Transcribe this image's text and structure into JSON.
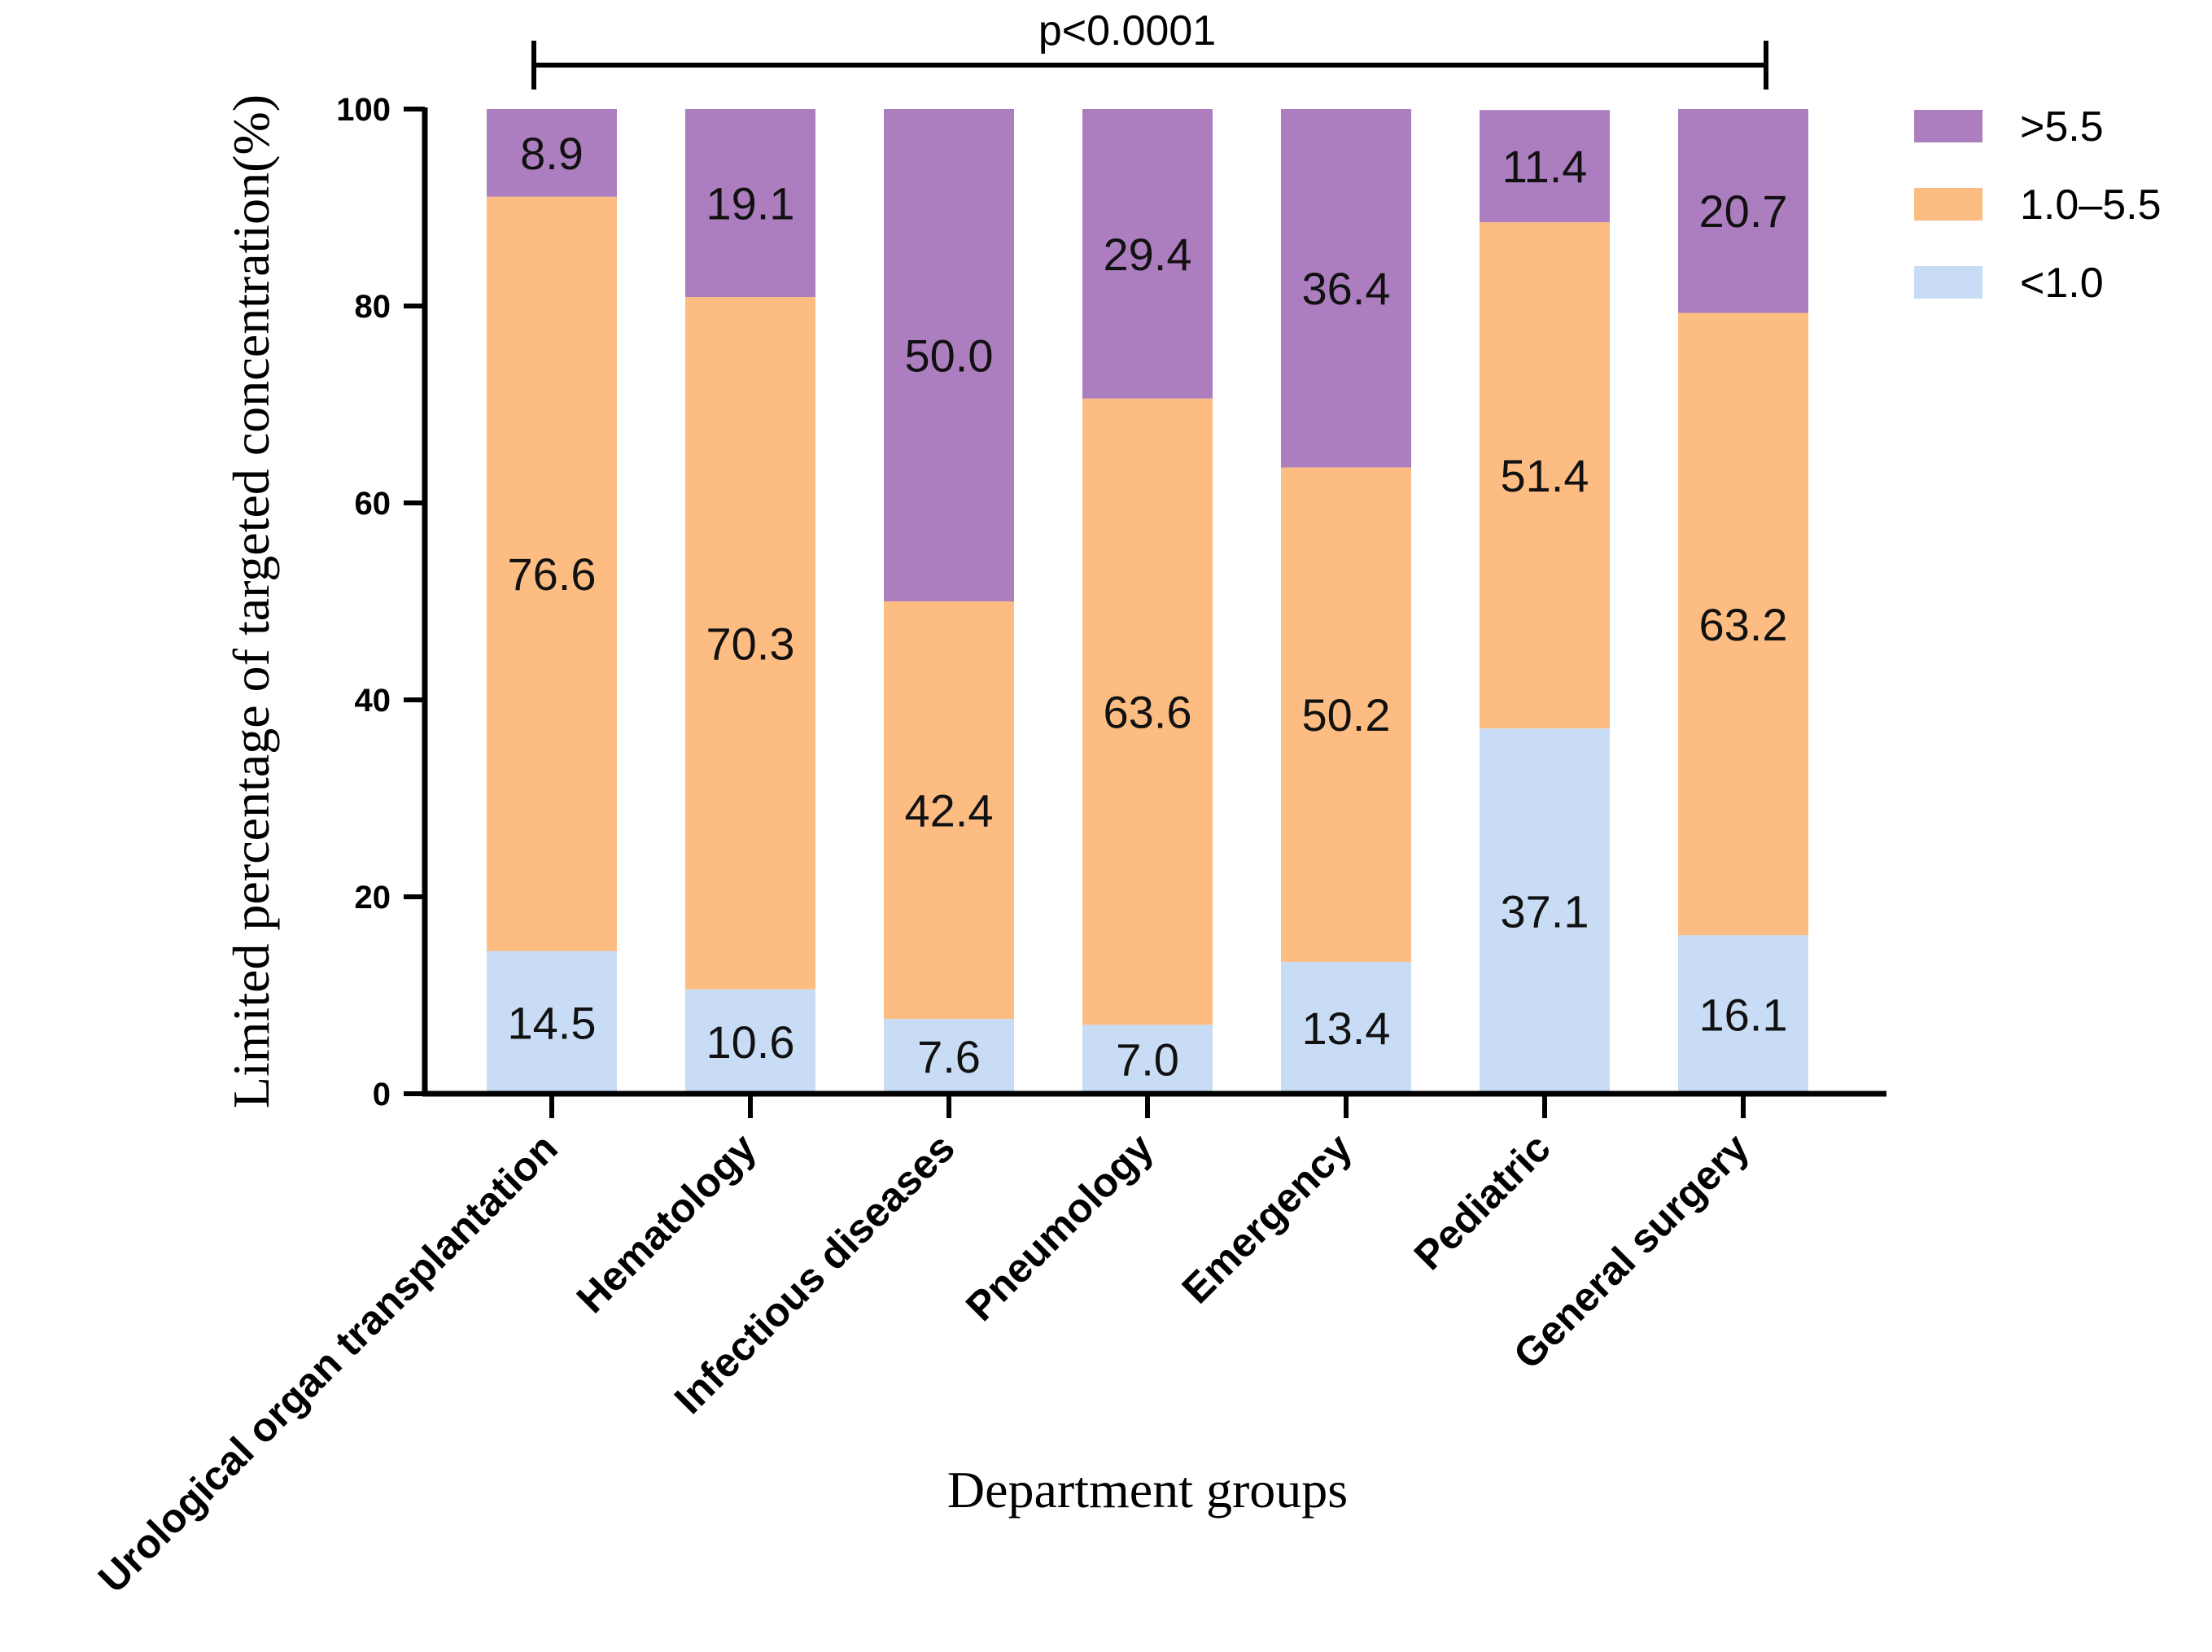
{
  "chart_data": {
    "type": "bar",
    "stacked": true,
    "categories": [
      "Urological organ transplantation",
      "Hematology",
      "Infectious diseases",
      "Pneumology",
      "Emergency",
      "Pediatric",
      "General surgery"
    ],
    "series": [
      {
        "name": "<1.0",
        "color": "#c9dcf5",
        "values": [
          14.5,
          10.6,
          7.6,
          7.0,
          13.4,
          37.1,
          16.1
        ]
      },
      {
        "name": "1.0–5.5",
        "color": "#fdbd82",
        "values": [
          76.6,
          70.3,
          42.4,
          63.6,
          50.2,
          51.4,
          63.2
        ]
      },
      {
        "name": ">5.5",
        "color": "#ad7ebf",
        "values": [
          8.9,
          19.1,
          50.0,
          29.4,
          36.4,
          11.4,
          20.7
        ]
      }
    ],
    "ylim": [
      0,
      100
    ],
    "yticks": [
      0,
      20,
      40,
      60,
      80,
      100
    ],
    "xlabel": "Department groups",
    "ylabel": "Limited percentage of targeted concentration(%)",
    "legend_order": [
      ">5.5",
      "1.0–5.5",
      "<1.0"
    ],
    "legend_position": "top-right",
    "annotation": "p<0.0001",
    "grid": false
  }
}
